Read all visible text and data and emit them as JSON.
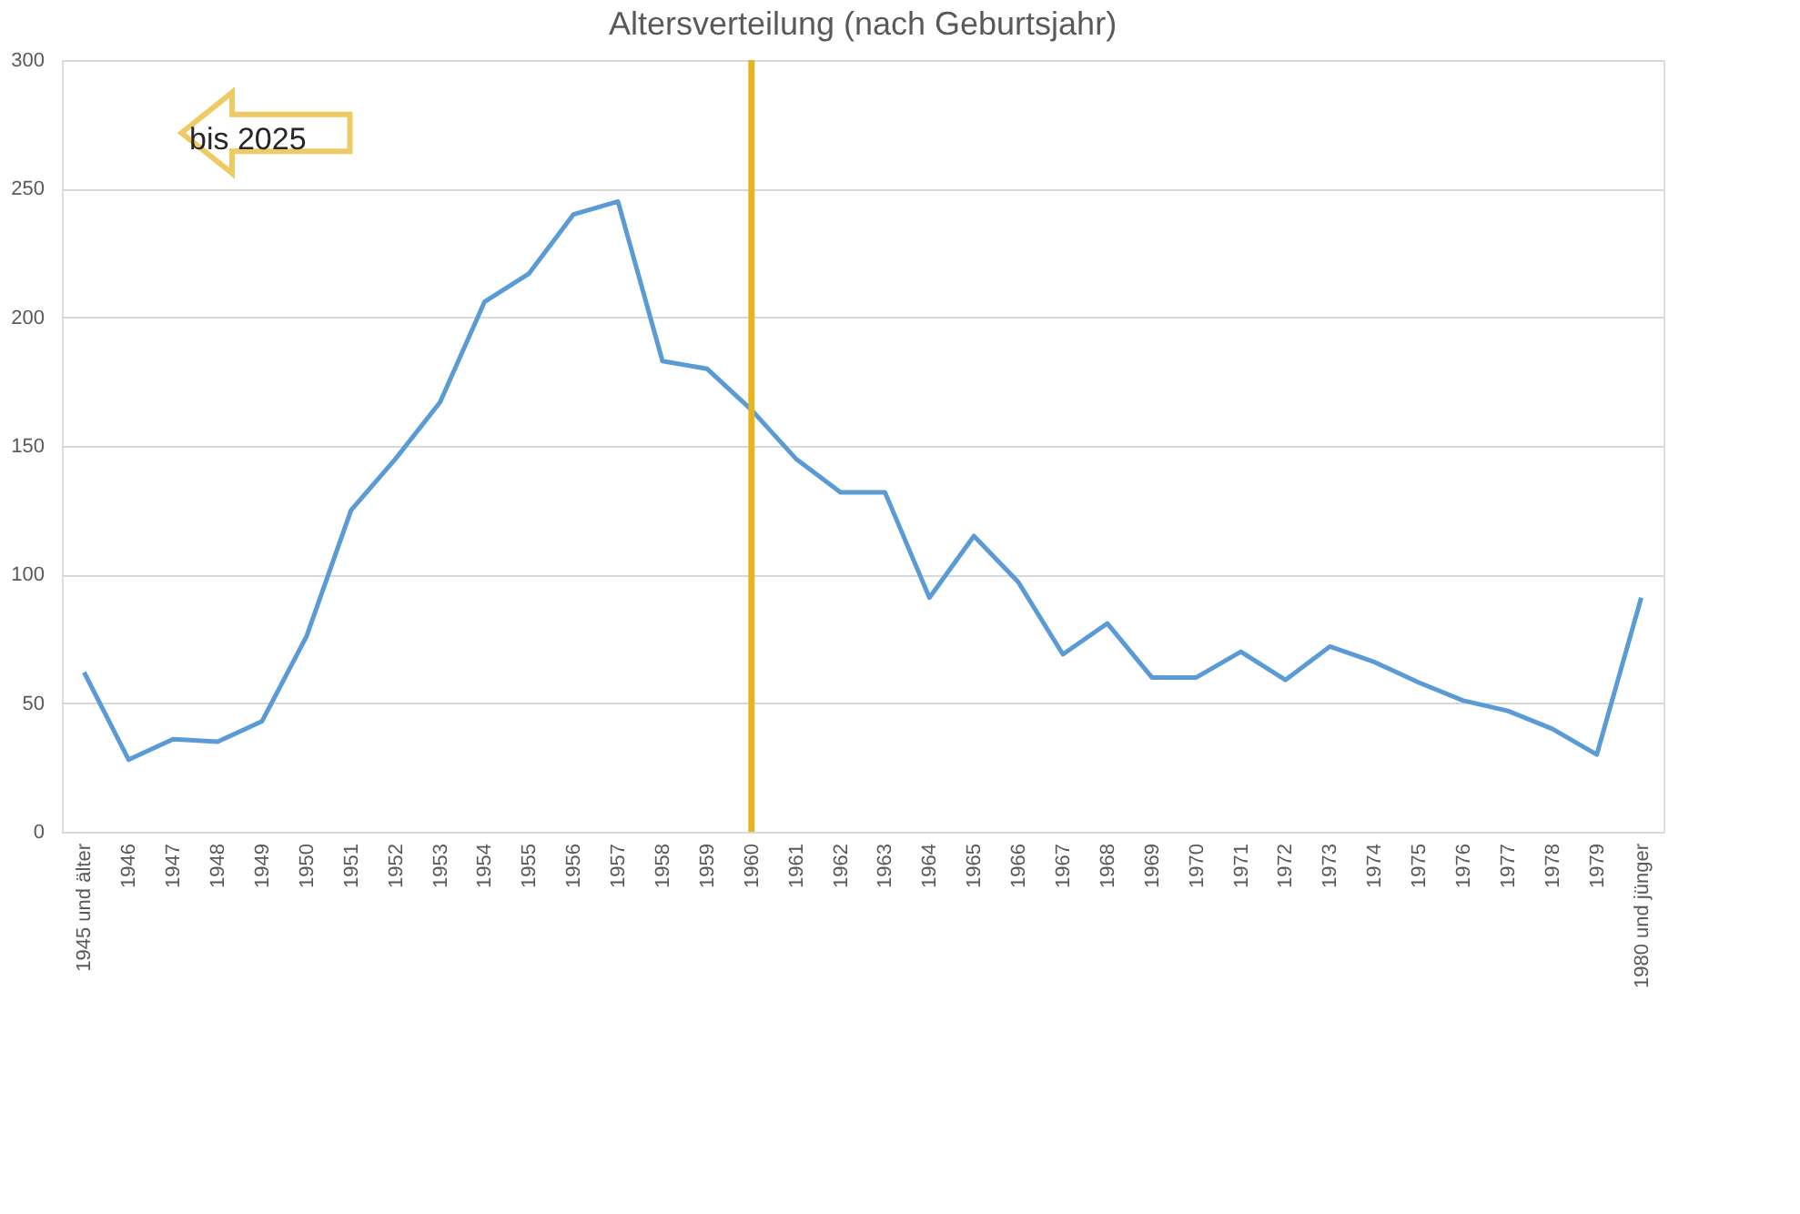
{
  "chart_data": {
    "type": "line",
    "title": "Altersverteilung (nach Geburtsjahr)",
    "categories": [
      "1945 und älter",
      "1946",
      "1947",
      "1948",
      "1949",
      "1950",
      "1951",
      "1952",
      "1953",
      "1954",
      "1955",
      "1956",
      "1957",
      "1958",
      "1959",
      "1960",
      "1961",
      "1962",
      "1963",
      "1964",
      "1965",
      "1966",
      "1967",
      "1968",
      "1969",
      "1970",
      "1971",
      "1972",
      "1973",
      "1974",
      "1975",
      "1976",
      "1977",
      "1978",
      "1979",
      "1980 und jünger"
    ],
    "series": [
      {
        "color": "#5b9bd5",
        "values": [
          62,
          28,
          36,
          35,
          43,
          76,
          125,
          145,
          167,
          206,
          217,
          240,
          245,
          183,
          180,
          164,
          145,
          132,
          132,
          91,
          115,
          97,
          69,
          81,
          60,
          60,
          70,
          59,
          72,
          66,
          58,
          51,
          47,
          40,
          30,
          91
        ]
      }
    ],
    "ylim": [
      0,
      300
    ],
    "yticks": [
      0,
      50,
      100,
      150,
      200,
      250,
      300
    ],
    "grid": "y",
    "legend": false,
    "marker": "none",
    "line_style": "solid",
    "ref_lines": [
      {
        "axis": "x",
        "value": "1960",
        "color": "#e6b422"
      }
    ],
    "annotations": [
      "bis 2025"
    ]
  }
}
